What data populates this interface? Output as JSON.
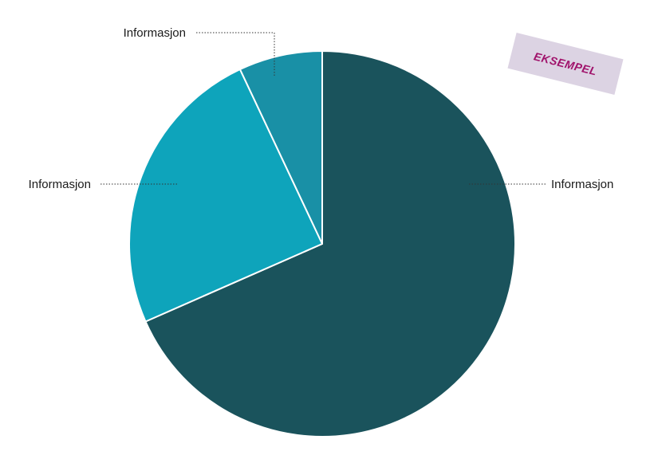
{
  "chart_data": {
    "type": "pie",
    "start": "12 o'clock",
    "direction": "clockwise",
    "slices": [
      {
        "label": "Informasjon",
        "value": 68.4,
        "color": "#1a535c"
      },
      {
        "label": "Informasjon",
        "value": 24.6,
        "color": "#0ea4bb"
      },
      {
        "label": "Informasjon",
        "value": 7.0,
        "color": "#1990a6"
      }
    ],
    "slice_border_color": "#ffffff"
  },
  "watermark": {
    "text": "EKSEMPEL",
    "text_color": "#a0126b",
    "background_color": "#dcd3e3"
  }
}
